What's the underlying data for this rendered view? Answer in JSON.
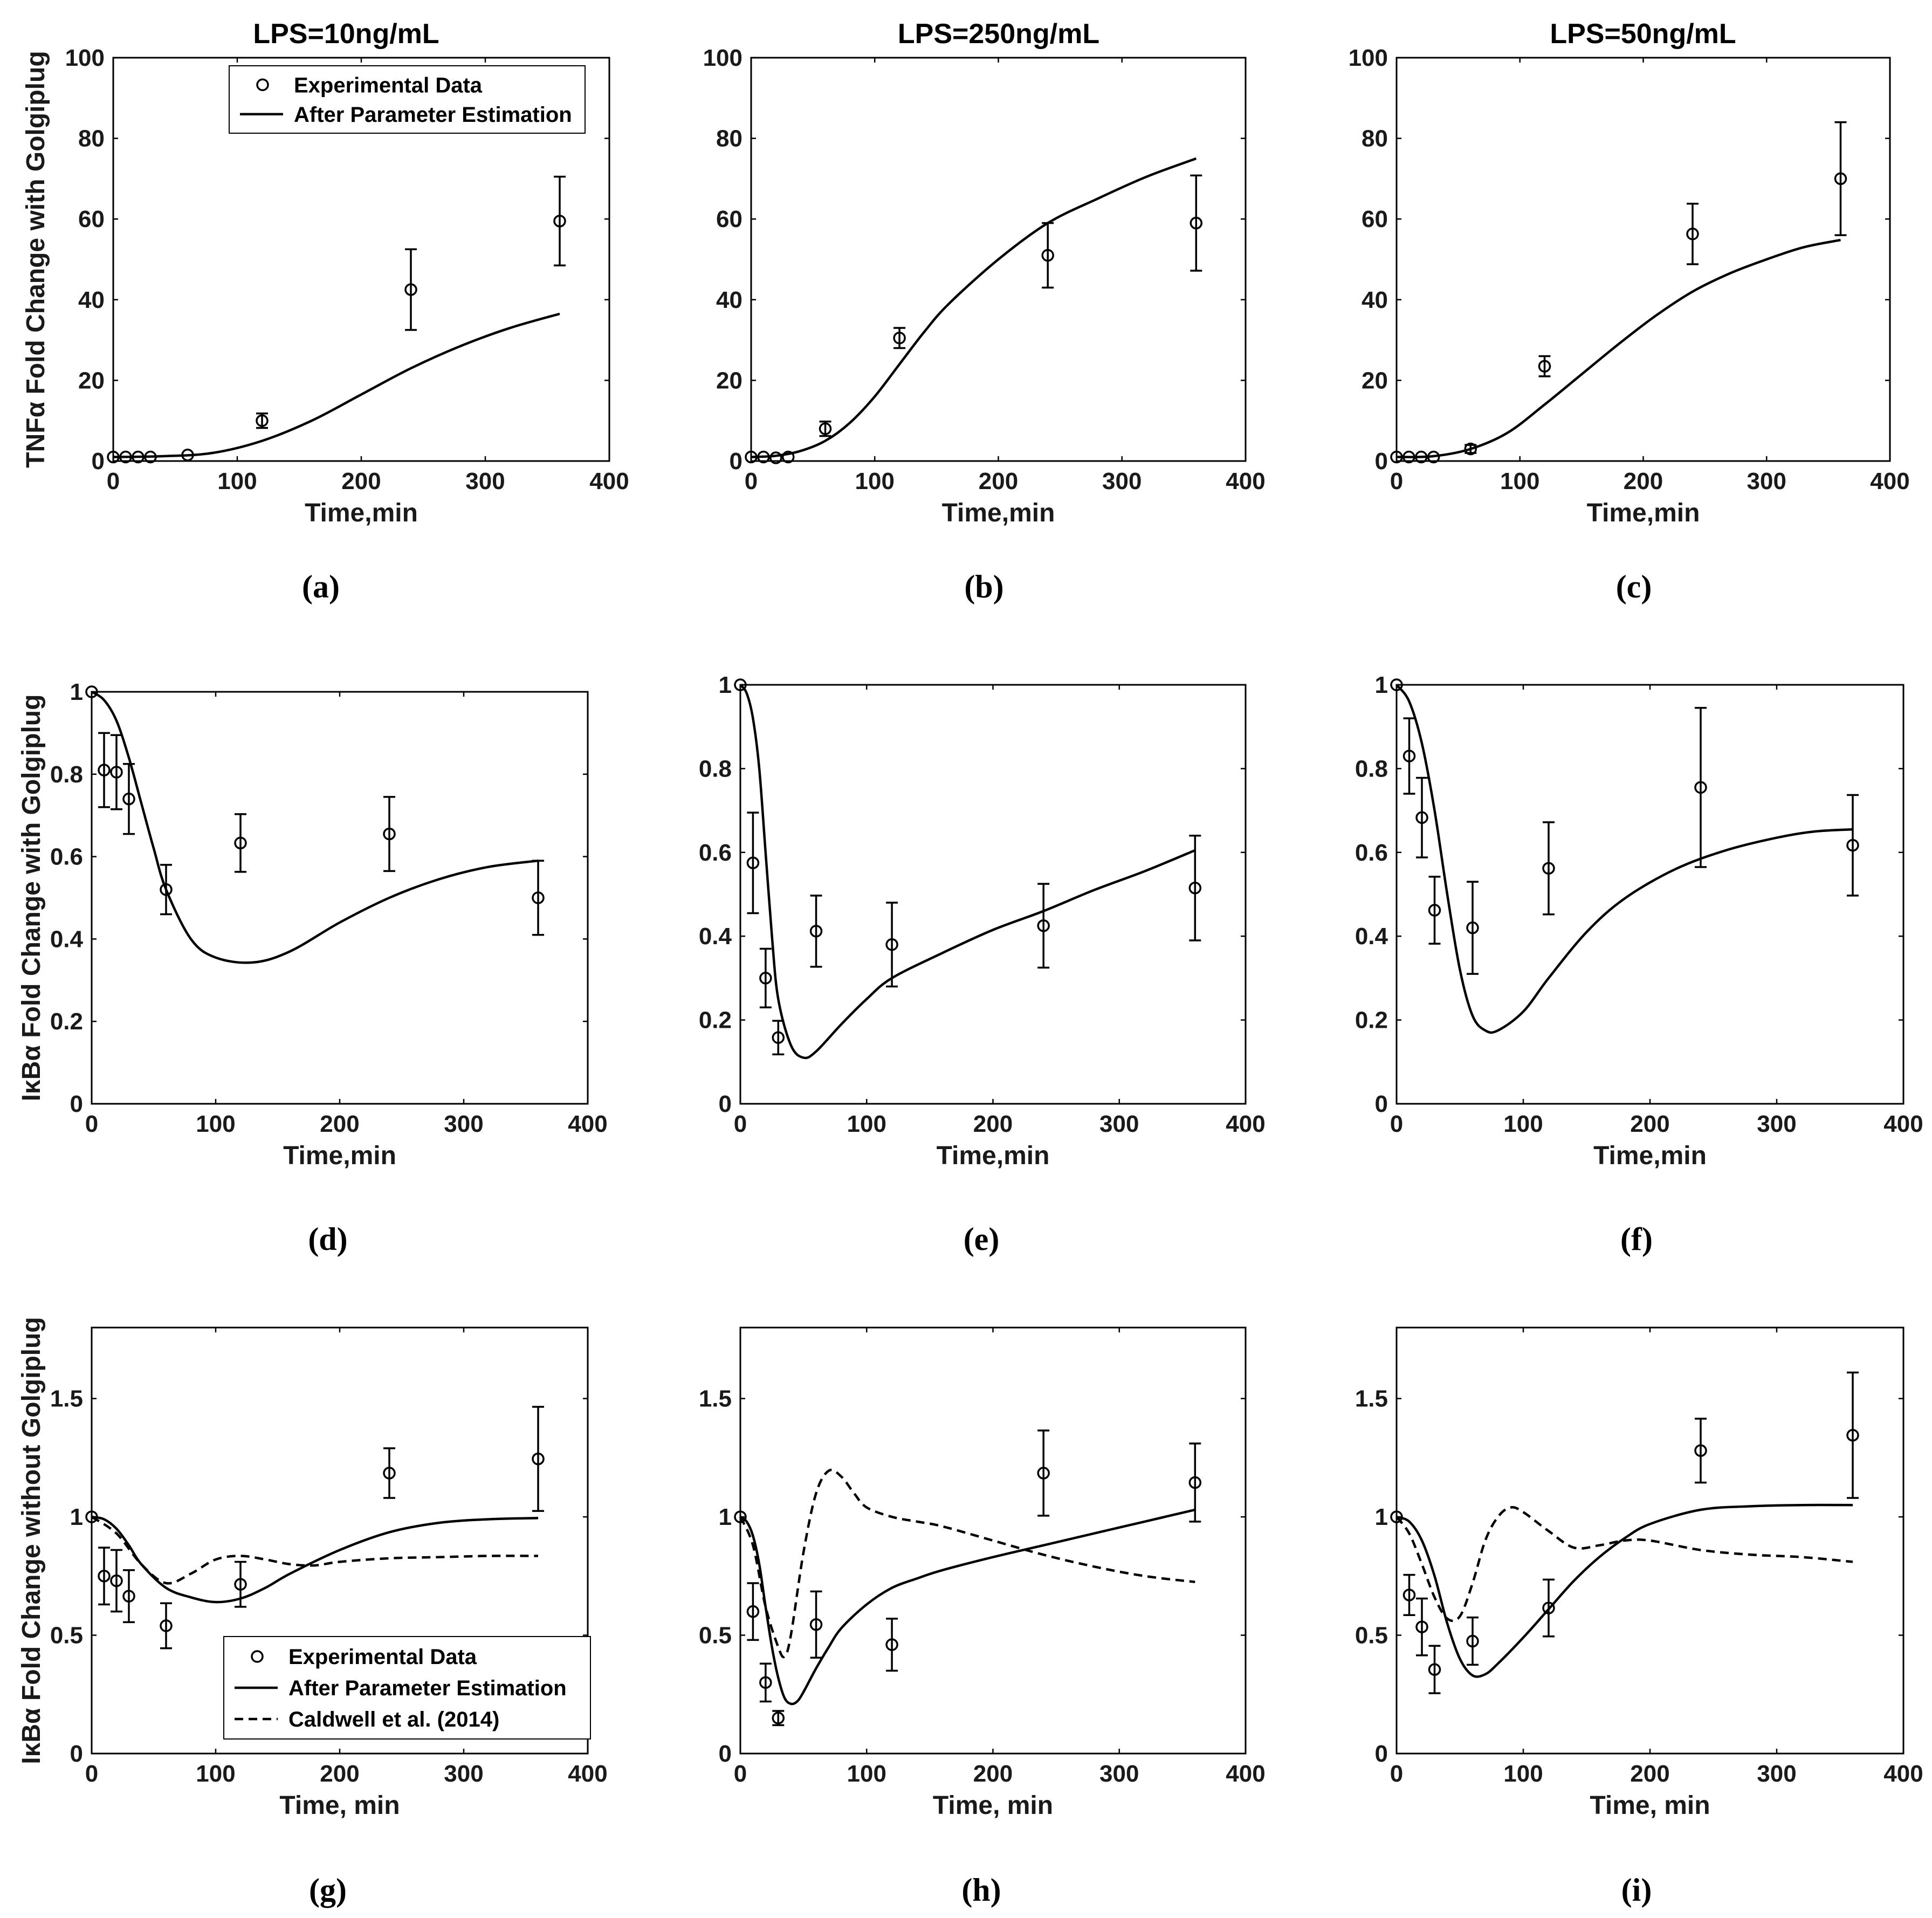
{
  "figure": {
    "column_titles": [
      "LPS=10ng/mL",
      "LPS=250ng/mL",
      "LPS=50ng/mL"
    ]
  },
  "chart_data": [
    {
      "panel": "(a)",
      "type": "line",
      "ylabel": "TNFα Fold Change with Golgiplug",
      "xlabel": "Time,min",
      "xlim": [
        0,
        400
      ],
      "ylim": [
        0,
        100
      ],
      "xticks": [
        0,
        100,
        200,
        300,
        400
      ],
      "yticks": [
        0,
        20,
        40,
        60,
        80,
        100
      ],
      "legend": [
        "Experimental Data",
        "After Parameter Estimation"
      ],
      "experimental": {
        "x": [
          0,
          10,
          20,
          30,
          60,
          120,
          240,
          360
        ],
        "y": [
          1,
          1,
          1,
          1,
          1.5,
          10,
          42.5,
          59.5
        ],
        "err": [
          0,
          0,
          0,
          0,
          0,
          1.8,
          10,
          11
        ]
      },
      "model": {
        "x": [
          0,
          40,
          80,
          120,
          160,
          200,
          240,
          280,
          320,
          360
        ],
        "y": [
          1,
          1.2,
          2,
          5,
          10,
          16.5,
          23,
          28.5,
          33,
          36.5
        ]
      }
    },
    {
      "panel": "(b)",
      "type": "line",
      "xlabel": "Time,min",
      "xlim": [
        0,
        400
      ],
      "ylim": [
        0,
        100
      ],
      "xticks": [
        0,
        100,
        200,
        300,
        400
      ],
      "yticks": [
        0,
        20,
        40,
        60,
        80,
        100
      ],
      "experimental": {
        "x": [
          0,
          10,
          20,
          30,
          60,
          120,
          240,
          360
        ],
        "y": [
          1,
          1,
          0.8,
          1,
          8,
          30.5,
          51,
          59
        ],
        "err": [
          0,
          0,
          0,
          0,
          1.8,
          2.5,
          8,
          11.8
        ]
      },
      "model": {
        "x": [
          0,
          20,
          40,
          60,
          80,
          100,
          120,
          140,
          160,
          200,
          240,
          280,
          320,
          360
        ],
        "y": [
          1,
          1.3,
          2.5,
          5,
          9.5,
          16,
          24,
          32,
          39,
          50,
          59,
          65,
          70.5,
          75
        ]
      }
    },
    {
      "panel": "(c)",
      "type": "line",
      "xlabel": "Time,min",
      "xlim": [
        0,
        400
      ],
      "ylim": [
        0,
        100
      ],
      "xticks": [
        0,
        100,
        200,
        300,
        400
      ],
      "yticks": [
        0,
        20,
        40,
        60,
        80,
        100
      ],
      "experimental": {
        "x": [
          0,
          10,
          20,
          30,
          60,
          120,
          240,
          360
        ],
        "y": [
          1,
          1,
          1,
          1,
          3,
          23.5,
          56.3,
          70
        ],
        "err": [
          0,
          0,
          0,
          0,
          1,
          2.5,
          7.5,
          14
        ]
      },
      "model": {
        "x": [
          0,
          30,
          60,
          90,
          120,
          150,
          180,
          210,
          240,
          270,
          300,
          330,
          360
        ],
        "y": [
          1,
          1.2,
          3,
          7,
          14,
          21.5,
          29,
          36,
          42,
          46.5,
          50,
          53,
          54.8
        ]
      }
    },
    {
      "panel": "(d)",
      "type": "line",
      "ylabel": "IκBα Fold Change with Golgiplug",
      "xlabel": "Time,min",
      "xlim": [
        0,
        400
      ],
      "ylim": [
        0,
        1
      ],
      "xticks": [
        0,
        100,
        200,
        300,
        400
      ],
      "yticks": [
        0,
        0.2,
        0.4,
        0.6,
        0.8,
        1
      ],
      "experimental": {
        "x": [
          0,
          10,
          20,
          30,
          60,
          120,
          240,
          360
        ],
        "y": [
          1,
          0.81,
          0.805,
          0.74,
          0.52,
          0.633,
          0.655,
          0.5
        ],
        "err": [
          0,
          0.09,
          0.09,
          0.085,
          0.06,
          0.07,
          0.09,
          0.09
        ]
      },
      "model": {
        "x": [
          0,
          10,
          20,
          30,
          40,
          50,
          60,
          80,
          100,
          130,
          160,
          200,
          240,
          280,
          320,
          360
        ],
        "y": [
          1,
          0.98,
          0.93,
          0.84,
          0.73,
          0.62,
          0.52,
          0.4,
          0.355,
          0.343,
          0.37,
          0.44,
          0.5,
          0.545,
          0.575,
          0.59
        ]
      }
    },
    {
      "panel": "(e)",
      "type": "line",
      "xlabel": "Time,min",
      "xlim": [
        0,
        400
      ],
      "ylim": [
        0,
        1
      ],
      "xticks": [
        0,
        100,
        200,
        300,
        400
      ],
      "yticks": [
        0,
        0.2,
        0.4,
        0.6,
        0.8,
        1
      ],
      "experimental": {
        "x": [
          0,
          10,
          20,
          30,
          60,
          120,
          240,
          360
        ],
        "y": [
          1,
          0.575,
          0.3,
          0.158,
          0.412,
          0.38,
          0.425,
          0.515
        ],
        "err": [
          0,
          0.12,
          0.07,
          0.04,
          0.085,
          0.1,
          0.1,
          0.125
        ]
      },
      "model": {
        "x": [
          0,
          5,
          10,
          15,
          20,
          25,
          30,
          40,
          50,
          60,
          80,
          100,
          120,
          160,
          200,
          240,
          280,
          320,
          360
        ],
        "y": [
          1,
          0.98,
          0.92,
          0.8,
          0.6,
          0.4,
          0.25,
          0.14,
          0.11,
          0.125,
          0.19,
          0.25,
          0.3,
          0.36,
          0.415,
          0.46,
          0.51,
          0.555,
          0.605
        ]
      }
    },
    {
      "panel": "(f)",
      "type": "line",
      "xlabel": "Time,min",
      "xlim": [
        0,
        400
      ],
      "ylim": [
        0,
        1
      ],
      "xticks": [
        0,
        100,
        200,
        300,
        400
      ],
      "yticks": [
        0,
        0.2,
        0.4,
        0.6,
        0.8,
        1
      ],
      "experimental": {
        "x": [
          0,
          10,
          20,
          30,
          60,
          120,
          240,
          360
        ],
        "y": [
          1,
          0.83,
          0.683,
          0.462,
          0.42,
          0.562,
          0.755,
          0.617
        ],
        "err": [
          0,
          0.09,
          0.095,
          0.08,
          0.11,
          0.11,
          0.19,
          0.12
        ]
      },
      "model": {
        "x": [
          0,
          10,
          20,
          30,
          40,
          50,
          60,
          70,
          80,
          100,
          120,
          150,
          180,
          220,
          260,
          300,
          330,
          360
        ],
        "y": [
          1,
          0.96,
          0.86,
          0.7,
          0.5,
          0.32,
          0.21,
          0.175,
          0.175,
          0.22,
          0.3,
          0.41,
          0.49,
          0.56,
          0.605,
          0.635,
          0.65,
          0.655
        ]
      }
    },
    {
      "panel": "(g)",
      "type": "line",
      "ylabel": "IκBα Fold Change without Golgiplug",
      "xlabel": "Time, min",
      "xlim": [
        0,
        400
      ],
      "ylim": [
        0,
        1.8
      ],
      "xticks": [
        0,
        100,
        200,
        300,
        400
      ],
      "yticks": [
        0,
        0.5,
        1,
        1.5
      ],
      "legend": [
        "Experimental Data",
        "After Parameter Estimation",
        "Caldwell et al. (2014)"
      ],
      "experimental": {
        "x": [
          0,
          10,
          20,
          30,
          60,
          120,
          240,
          360
        ],
        "y": [
          1,
          0.75,
          0.73,
          0.665,
          0.54,
          0.715,
          1.185,
          1.245
        ],
        "err": [
          0,
          0.12,
          0.13,
          0.11,
          0.095,
          0.095,
          0.105,
          0.22
        ]
      },
      "model": {
        "x": [
          0,
          10,
          20,
          30,
          40,
          60,
          80,
          100,
          120,
          140,
          160,
          200,
          240,
          280,
          320,
          360
        ],
        "y": [
          1,
          0.99,
          0.95,
          0.88,
          0.8,
          0.7,
          0.66,
          0.64,
          0.655,
          0.7,
          0.76,
          0.86,
          0.935,
          0.975,
          0.99,
          0.995
        ]
      },
      "caldwell": {
        "x": [
          0,
          20,
          40,
          60,
          80,
          100,
          120,
          140,
          160,
          180,
          200,
          240,
          280,
          320,
          360
        ],
        "y": [
          1,
          0.93,
          0.8,
          0.72,
          0.76,
          0.82,
          0.835,
          0.82,
          0.8,
          0.795,
          0.81,
          0.825,
          0.83,
          0.835,
          0.835
        ]
      }
    },
    {
      "panel": "(h)",
      "type": "line",
      "xlabel": "Time, min",
      "xlim": [
        0,
        400
      ],
      "ylim": [
        0,
        1.8
      ],
      "xticks": [
        0,
        100,
        200,
        300,
        400
      ],
      "yticks": [
        0,
        0.5,
        1,
        1.5
      ],
      "experimental": {
        "x": [
          0,
          10,
          20,
          30,
          60,
          120,
          240,
          360
        ],
        "y": [
          1,
          0.6,
          0.3,
          0.15,
          0.545,
          0.46,
          1.185,
          1.145
        ],
        "err": [
          0,
          0.12,
          0.08,
          0.03,
          0.14,
          0.11,
          0.18,
          0.165
        ]
      },
      "model": {
        "x": [
          0,
          5,
          10,
          15,
          20,
          25,
          30,
          35,
          40,
          45,
          50,
          60,
          70,
          80,
          100,
          120,
          140,
          160,
          200,
          240,
          280,
          320,
          360
        ],
        "y": [
          1,
          0.98,
          0.92,
          0.8,
          0.62,
          0.45,
          0.32,
          0.235,
          0.21,
          0.22,
          0.26,
          0.36,
          0.45,
          0.53,
          0.63,
          0.7,
          0.74,
          0.775,
          0.83,
          0.88,
          0.93,
          0.98,
          1.03
        ]
      },
      "caldwell": {
        "x": [
          0,
          10,
          20,
          30,
          35,
          40,
          50,
          60,
          70,
          80,
          90,
          100,
          120,
          140,
          160,
          200,
          240,
          280,
          320,
          360
        ],
        "y": [
          1,
          0.88,
          0.62,
          0.45,
          0.41,
          0.5,
          0.85,
          1.1,
          1.195,
          1.17,
          1.1,
          1.04,
          1.0,
          0.98,
          0.96,
          0.9,
          0.84,
          0.79,
          0.75,
          0.725
        ]
      }
    },
    {
      "panel": "(i)",
      "type": "line",
      "xlabel": "Time, min",
      "xlim": [
        0,
        400
      ],
      "ylim": [
        0,
        1.8
      ],
      "xticks": [
        0,
        100,
        200,
        300,
        400
      ],
      "yticks": [
        0,
        0.5,
        1,
        1.5
      ],
      "experimental": {
        "x": [
          0,
          10,
          20,
          30,
          60,
          120,
          240,
          360
        ],
        "y": [
          1,
          0.67,
          0.535,
          0.355,
          0.475,
          0.615,
          1.28,
          1.345
        ],
        "err": [
          0,
          0.085,
          0.12,
          0.1,
          0.1,
          0.12,
          0.135,
          0.265
        ]
      },
      "model": {
        "x": [
          0,
          10,
          20,
          30,
          40,
          50,
          60,
          70,
          80,
          100,
          120,
          140,
          160,
          180,
          200,
          240,
          280,
          320,
          360
        ],
        "y": [
          1,
          0.98,
          0.9,
          0.75,
          0.55,
          0.4,
          0.33,
          0.335,
          0.38,
          0.49,
          0.61,
          0.73,
          0.83,
          0.91,
          0.97,
          1.03,
          1.045,
          1.05,
          1.05
        ]
      },
      "caldwell": {
        "x": [
          0,
          10,
          20,
          30,
          40,
          50,
          60,
          70,
          80,
          90,
          100,
          120,
          140,
          160,
          180,
          200,
          240,
          280,
          320,
          360
        ],
        "y": [
          1,
          0.93,
          0.8,
          0.66,
          0.57,
          0.58,
          0.72,
          0.9,
          1.0,
          1.04,
          1.02,
          0.94,
          0.87,
          0.88,
          0.9,
          0.9,
          0.86,
          0.84,
          0.83,
          0.81
        ]
      }
    }
  ]
}
